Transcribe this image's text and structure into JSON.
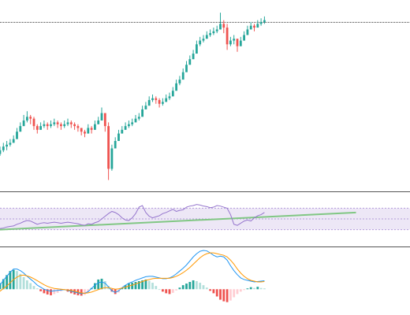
{
  "colors": {
    "up": "#26a69a",
    "down": "#ef5350",
    "rsi_line": "#9575cd",
    "rsi_band": "#ede7f6",
    "rsi_band_border": "#b39ddb",
    "trendline": "#81c784",
    "macd_line": "#2196f3",
    "signal_line": "#ff9800",
    "hist_up_strong": "#26a69a",
    "hist_up_weak": "#b2dfdb",
    "hist_down_strong": "#ef5350",
    "hist_down_weak": "#ffcdd2",
    "pane_separator": "#555555",
    "price_line": "#333333"
  },
  "chart_data": [
    {
      "type": "candlestick",
      "pane": "price",
      "reference_line": 88.8,
      "ylim": [
        0,
        100
      ],
      "close": [
        20,
        22,
        23,
        24,
        26,
        30,
        33,
        36,
        38,
        37,
        33,
        31,
        33,
        34,
        33,
        34,
        35,
        34,
        33,
        34,
        35,
        34,
        33,
        32,
        30,
        29,
        32,
        31,
        34,
        36,
        40,
        33,
        10,
        21,
        25,
        29,
        31,
        33,
        34,
        35,
        37,
        38,
        42,
        44,
        47,
        48,
        47,
        45,
        46,
        48,
        49,
        52,
        56,
        58,
        62,
        66,
        69,
        72,
        77,
        79,
        80,
        82,
        83,
        84,
        85,
        88,
        86,
        77,
        79,
        80,
        76,
        79,
        82,
        85,
        87,
        86,
        88,
        89,
        90
      ],
      "ranges": [
        [
          17,
          22
        ],
        [
          19,
          24
        ],
        [
          20,
          25
        ],
        [
          22,
          26
        ],
        [
          24,
          28
        ],
        [
          27,
          32
        ],
        [
          30,
          35
        ],
        [
          33,
          39
        ],
        [
          35,
          41
        ],
        [
          34,
          39
        ],
        [
          31,
          38
        ],
        [
          29,
          34
        ],
        [
          31,
          35
        ],
        [
          32,
          36
        ],
        [
          31,
          35
        ],
        [
          32,
          36
        ],
        [
          33,
          37
        ],
        [
          32,
          36
        ],
        [
          31,
          35
        ],
        [
          32,
          36
        ],
        [
          33,
          37
        ],
        [
          32,
          36
        ],
        [
          31,
          35
        ],
        [
          30,
          34
        ],
        [
          28,
          32
        ],
        [
          27,
          31
        ],
        [
          29,
          34
        ],
        [
          29,
          33
        ],
        [
          31,
          36
        ],
        [
          34,
          38
        ],
        [
          36,
          43
        ],
        [
          30,
          40
        ],
        [
          4,
          35
        ],
        [
          9,
          23
        ],
        [
          22,
          27
        ],
        [
          27,
          31
        ],
        [
          29,
          33
        ],
        [
          31,
          35
        ],
        [
          32,
          36
        ],
        [
          33,
          37
        ],
        [
          35,
          39
        ],
        [
          36,
          40
        ],
        [
          39,
          44
        ],
        [
          42,
          46
        ],
        [
          44,
          49
        ],
        [
          46,
          50
        ],
        [
          45,
          49
        ],
        [
          43,
          48
        ],
        [
          44,
          48
        ],
        [
          46,
          50
        ],
        [
          47,
          51
        ],
        [
          49,
          54
        ],
        [
          53,
          58
        ],
        [
          55,
          60
        ],
        [
          59,
          64
        ],
        [
          63,
          68
        ],
        [
          66,
          71
        ],
        [
          69,
          74
        ],
        [
          74,
          79
        ],
        [
          76,
          81
        ],
        [
          78,
          82
        ],
        [
          80,
          84
        ],
        [
          81,
          85
        ],
        [
          82,
          86
        ],
        [
          83,
          87
        ],
        [
          85,
          94
        ],
        [
          83,
          90
        ],
        [
          74,
          88
        ],
        [
          76,
          81
        ],
        [
          77,
          82
        ],
        [
          73,
          80
        ],
        [
          76,
          81
        ],
        [
          79,
          84
        ],
        [
          82,
          87
        ],
        [
          85,
          89
        ],
        [
          84,
          88
        ],
        [
          86,
          90
        ],
        [
          87,
          91
        ],
        [
          88,
          92
        ]
      ]
    },
    {
      "type": "line",
      "pane": "rsi",
      "ylim": [
        0,
        100
      ],
      "band": [
        30,
        70
      ],
      "trendline": [
        [
          0,
          30
        ],
        [
          105,
          62
        ]
      ],
      "values": [
        32,
        33,
        35,
        36,
        37,
        40,
        42,
        45,
        47,
        46,
        43,
        40,
        42,
        43,
        42,
        43,
        44,
        43,
        42,
        43,
        44,
        43,
        42,
        41,
        39,
        38,
        41,
        40,
        43,
        45,
        50,
        55,
        60,
        64,
        62,
        58,
        52,
        48,
        47,
        52,
        60,
        72,
        75,
        62,
        55,
        52,
        54,
        56,
        60,
        62,
        65,
        68,
        64,
        66,
        67,
        72,
        74,
        75,
        77,
        76,
        74,
        73,
        71,
        72,
        75,
        74,
        72,
        70,
        58,
        40,
        38,
        42,
        46,
        48,
        46,
        52,
        56,
        58,
        62
      ]
    },
    {
      "type": "bar",
      "pane": "macd_histogram",
      "ylim": [
        -6,
        10
      ],
      "values": [
        1.5,
        2.5,
        3.5,
        4.5,
        4.8,
        4.5,
        3.8,
        3.0,
        2.2,
        1.5,
        0.8,
        0.2,
        -0.5,
        -1.0,
        -1.3,
        -1.5,
        -1.2,
        -0.9,
        -0.5,
        -0.2,
        -0.6,
        -1.0,
        -1.3,
        -1.5,
        -1.6,
        -1.4,
        -0.8,
        0.3,
        1.5,
        2.4,
        2.6,
        2.0,
        0.8,
        -0.6,
        -1.2,
        -0.8,
        0.3,
        1.0,
        1.4,
        1.6,
        1.8,
        2.0,
        2.2,
        2.4,
        2.1,
        1.6,
        0.8,
        0.0,
        -0.6,
        -1.0,
        -1.2,
        -0.9,
        -0.3,
        0.4,
        1.0,
        1.4,
        1.8,
        2.2,
        2.0,
        1.6,
        1.0,
        0.4,
        -0.4,
        -1.0,
        -1.8,
        -2.6,
        -3.0,
        -3.2,
        -2.8,
        -2.0,
        -1.2,
        -0.6,
        -0.2,
        0.2,
        0.5,
        0.3,
        0.6,
        0.3,
        0.2
      ]
    },
    {
      "type": "line",
      "pane": "macd",
      "ylim": [
        -6,
        10
      ],
      "series": [
        {
          "values": [
            1.0,
            2.2,
            3.2,
            4.2,
            5.0,
            5.0,
            4.6,
            4.0,
            3.2,
            2.5,
            1.8,
            1.0,
            0.5,
            0.0,
            -0.3,
            -0.5,
            -0.4,
            -0.3,
            -0.2,
            -0.1,
            -0.3,
            -0.5,
            -0.7,
            -0.9,
            -1.1,
            -1.0,
            -0.6,
            0.2,
            1.0,
            1.6,
            1.8,
            1.5,
            0.6,
            -0.4,
            -0.8,
            -0.4,
            0.4,
            1.0,
            1.5,
            1.8,
            2.2,
            2.5,
            2.8,
            3.1,
            3.2,
            3.2,
            3.0,
            2.8,
            2.6,
            2.6,
            2.8,
            3.2,
            3.8,
            4.5,
            5.2,
            6.0,
            7.0,
            8.0,
            8.8,
            9.4,
            9.6,
            9.5,
            9.0,
            8.4,
            8.0,
            8.2,
            8.0,
            7.2,
            5.8,
            4.6,
            3.6,
            2.8,
            2.4,
            2.2,
            2.0,
            1.8,
            1.9,
            2.0,
            2.1
          ]
        },
        {
          "values": [
            -0.5,
            0.2,
            0.8,
            1.6,
            2.4,
            3.0,
            3.4,
            3.5,
            3.3,
            3.0,
            2.6,
            2.1,
            1.6,
            1.1,
            0.7,
            0.4,
            0.2,
            0.1,
            0.0,
            -0.1,
            -0.2,
            -0.3,
            -0.5,
            -0.7,
            -0.9,
            -1.0,
            -0.9,
            -0.7,
            -0.4,
            -0.1,
            0.2,
            0.4,
            0.4,
            0.2,
            0.0,
            0.1,
            0.3,
            0.5,
            0.8,
            1.0,
            1.3,
            1.6,
            1.9,
            2.2,
            2.4,
            2.6,
            2.7,
            2.7,
            2.7,
            2.7,
            2.7,
            2.9,
            3.2,
            3.6,
            4.1,
            4.7,
            5.4,
            6.2,
            7.0,
            7.8,
            8.4,
            8.8,
            9.0,
            9.0,
            8.8,
            8.6,
            8.4,
            8.0,
            7.2,
            6.2,
            5.0,
            4.0,
            3.2,
            2.6,
            2.2,
            2.0,
            1.8,
            1.8,
            1.9
          ]
        }
      ]
    }
  ]
}
